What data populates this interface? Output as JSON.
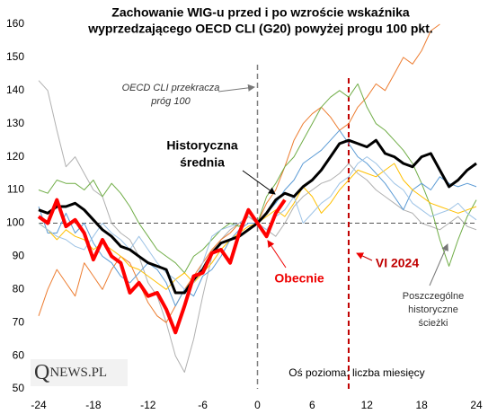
{
  "chart_data": {
    "type": "line",
    "title": [
      "Zachowanie WIG-u przed i po wzroście wskaźnika",
      "wyprzedzającego OECD CLI (G20) powyżej progu 100 pkt."
    ],
    "x_label": "Oś pozioma: liczba miesięcy",
    "annotations": {
      "threshold": [
        "OECD CLI przekracza",
        "próg 100"
      ],
      "average": [
        "Historyczna",
        "średnia"
      ],
      "current": "Obecnie",
      "date": "VI 2024",
      "paths": [
        "Poszczególne",
        "historyczne",
        "ścieżki"
      ]
    },
    "logo": {
      "first": "Q",
      "rest": "NEWS.PL"
    },
    "xlim": [
      -24,
      24
    ],
    "xticks": [
      -24,
      -18,
      -12,
      -6,
      0,
      6,
      12,
      18,
      24
    ],
    "ylim": [
      50,
      160
    ],
    "yticks": [
      50,
      60,
      70,
      80,
      90,
      100,
      110,
      120,
      130,
      140,
      150,
      160
    ],
    "hline": 100,
    "vlines": [
      {
        "x": 0,
        "color": "#808080"
      },
      {
        "x": 10,
        "color": "#c00000"
      }
    ],
    "x": [
      -24,
      -23,
      -22,
      -21,
      -20,
      -19,
      -18,
      -17,
      -16,
      -15,
      -14,
      -13,
      -12,
      -11,
      -10,
      -9,
      -8,
      -7,
      -6,
      -5,
      -4,
      -3,
      -2,
      -1,
      0,
      1,
      2,
      3,
      4,
      5,
      6,
      7,
      8,
      9,
      10,
      11,
      12,
      13,
      14,
      15,
      16,
      17,
      18,
      19,
      20,
      21,
      22,
      23,
      24
    ],
    "series": [
      {
        "color": "#b0b0b0",
        "width": 1,
        "values": [
          143,
          140,
          128,
          117,
          120,
          115,
          110,
          108,
          100,
          97,
          95,
          90,
          82,
          78,
          70,
          60,
          55,
          65,
          78,
          90,
          95,
          98,
          100,
          102,
          100,
          98,
          96,
          100,
          105,
          108,
          110,
          112,
          113,
          115,
          118,
          115,
          113,
          110,
          108,
          106,
          104,
          103,
          100,
          99,
          98,
          100,
          102,
          99,
          98
        ]
      },
      {
        "color": "#ed7d31",
        "width": 1,
        "values": [
          72,
          80,
          86,
          82,
          78,
          88,
          84,
          80,
          86,
          90,
          88,
          82,
          76,
          72,
          70,
          75,
          80,
          84,
          88,
          92,
          95,
          97,
          100,
          102,
          100,
          106,
          110,
          117,
          125,
          130,
          133,
          135,
          132,
          128,
          130,
          135,
          138,
          142,
          140,
          145,
          150,
          148,
          152,
          158,
          160,
          null,
          null,
          null,
          null
        ]
      },
      {
        "color": "#70ad47",
        "width": 1,
        "values": [
          110,
          109,
          113,
          112,
          112,
          110,
          113,
          108,
          112,
          109,
          105,
          100,
          96,
          92,
          90,
          88,
          85,
          90,
          92,
          95,
          98,
          100,
          99,
          102,
          100,
          108,
          112,
          117,
          120,
          125,
          130,
          135,
          138,
          140,
          138,
          142,
          135,
          130,
          128,
          125,
          122,
          118,
          112,
          105,
          95,
          87,
          95,
          102,
          107
        ]
      },
      {
        "color": "#5b9bd5",
        "width": 1,
        "values": [
          105,
          97,
          97,
          103,
          97,
          100,
          94,
          90,
          88,
          84,
          82,
          85,
          88,
          86,
          82,
          75,
          80,
          78,
          84,
          86,
          90,
          95,
          98,
          100,
          100,
          103,
          106,
          110,
          113,
          118,
          120,
          122,
          125,
          128,
          124,
          120,
          118,
          115,
          112,
          108,
          104,
          110,
          112,
          110,
          114,
          112,
          111,
          112,
          111
        ]
      },
      {
        "color": "#ffc000",
        "width": 1,
        "values": [
          100,
          98,
          95,
          98,
          96,
          95,
          92,
          94,
          92,
          90,
          87,
          86,
          84,
          82,
          80,
          83,
          85,
          82,
          85,
          88,
          92,
          95,
          97,
          99,
          100,
          102,
          104,
          102,
          106,
          111,
          108,
          103,
          106,
          110,
          113,
          116,
          115,
          114,
          116,
          118,
          113,
          110,
          108,
          106,
          105,
          104,
          103,
          104,
          105
        ]
      },
      {
        "color": "#9dc3e6",
        "width": 1,
        "values": [
          100,
          98,
          96,
          95,
          93,
          92,
          96,
          100,
          97,
          95,
          92,
          96,
          92,
          88,
          85,
          83,
          80,
          82,
          88,
          96,
          98,
          99,
          100,
          102,
          100,
          98,
          102,
          104,
          108,
          100,
          103,
          106,
          108,
          112,
          114,
          118,
          120,
          118,
          115,
          112,
          110,
          106,
          104,
          102,
          103,
          104,
          106,
          103,
          101
        ]
      },
      {
        "color": "#000000",
        "width": 3,
        "values": [
          104,
          103,
          105,
          105,
          106,
          104,
          101,
          98,
          96,
          93,
          92,
          90,
          88,
          87,
          86,
          79,
          79,
          83,
          86,
          91,
          94,
          95,
          96,
          98,
          100,
          103,
          107,
          109,
          108,
          111,
          113,
          116,
          120,
          124,
          125,
          124,
          123,
          125,
          121,
          120,
          118,
          117,
          120,
          121,
          116,
          111,
          113,
          116,
          118
        ]
      },
      {
        "color": "#ff0000",
        "width": 4,
        "values": [
          102,
          100,
          107,
          99,
          101,
          97,
          89,
          95,
          90,
          88,
          79,
          82,
          78,
          79,
          74,
          67,
          75,
          84,
          85,
          91,
          92,
          88,
          97,
          104,
          100,
          96,
          103,
          107,
          null,
          null,
          null,
          null,
          null,
          null,
          null,
          null,
          null,
          null,
          null,
          null,
          null,
          null,
          null,
          null,
          null,
          null,
          null,
          null,
          null
        ]
      }
    ]
  }
}
